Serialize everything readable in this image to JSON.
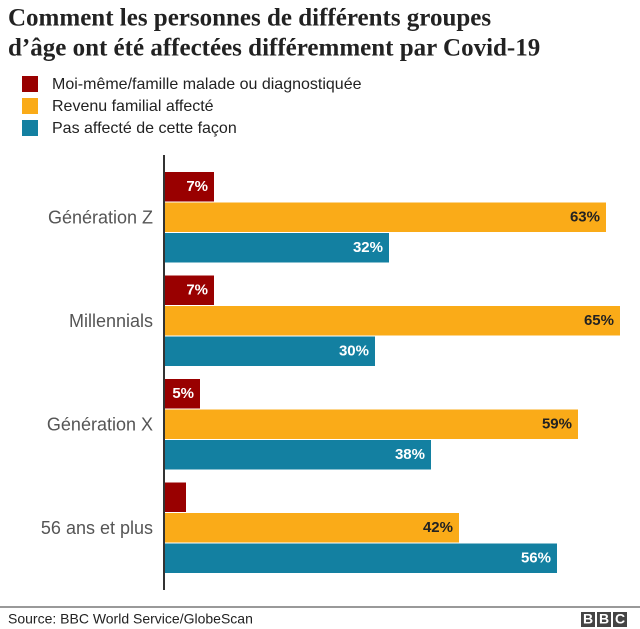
{
  "chart_data": {
    "type": "hbar",
    "title": [
      "Comment les personnes de différents groupes",
      "d’âge ont été affectées différemment par Covid-19"
    ],
    "categories": [
      "Génération Z",
      "Millennials",
      "Génération X",
      "56 ans et plus"
    ],
    "series": [
      {
        "name": "Moi-même/famille malade ou diagnostiquée",
        "color": "#990000",
        "label_color": "#ffffff",
        "values": [
          7,
          7,
          5,
          3
        ],
        "value_labels": [
          "7%",
          "7%",
          "5%",
          null
        ]
      },
      {
        "name": "Revenu familial affecté",
        "color": "#faab18",
        "label_color": "#222222",
        "values": [
          63,
          65,
          59,
          42
        ],
        "value_labels": [
          "63%",
          "65%",
          "59%",
          "42%"
        ]
      },
      {
        "name": "Pas affecté de cette façon",
        "color": "#1380a1",
        "label_color": "#ffffff",
        "values": [
          32,
          30,
          38,
          56
        ],
        "value_labels": [
          "32%",
          "30%",
          "38%",
          "56%"
        ]
      }
    ],
    "source": "Source: BBC World Service/GlobeScan",
    "logo": [
      "B",
      "B",
      "C"
    ]
  }
}
